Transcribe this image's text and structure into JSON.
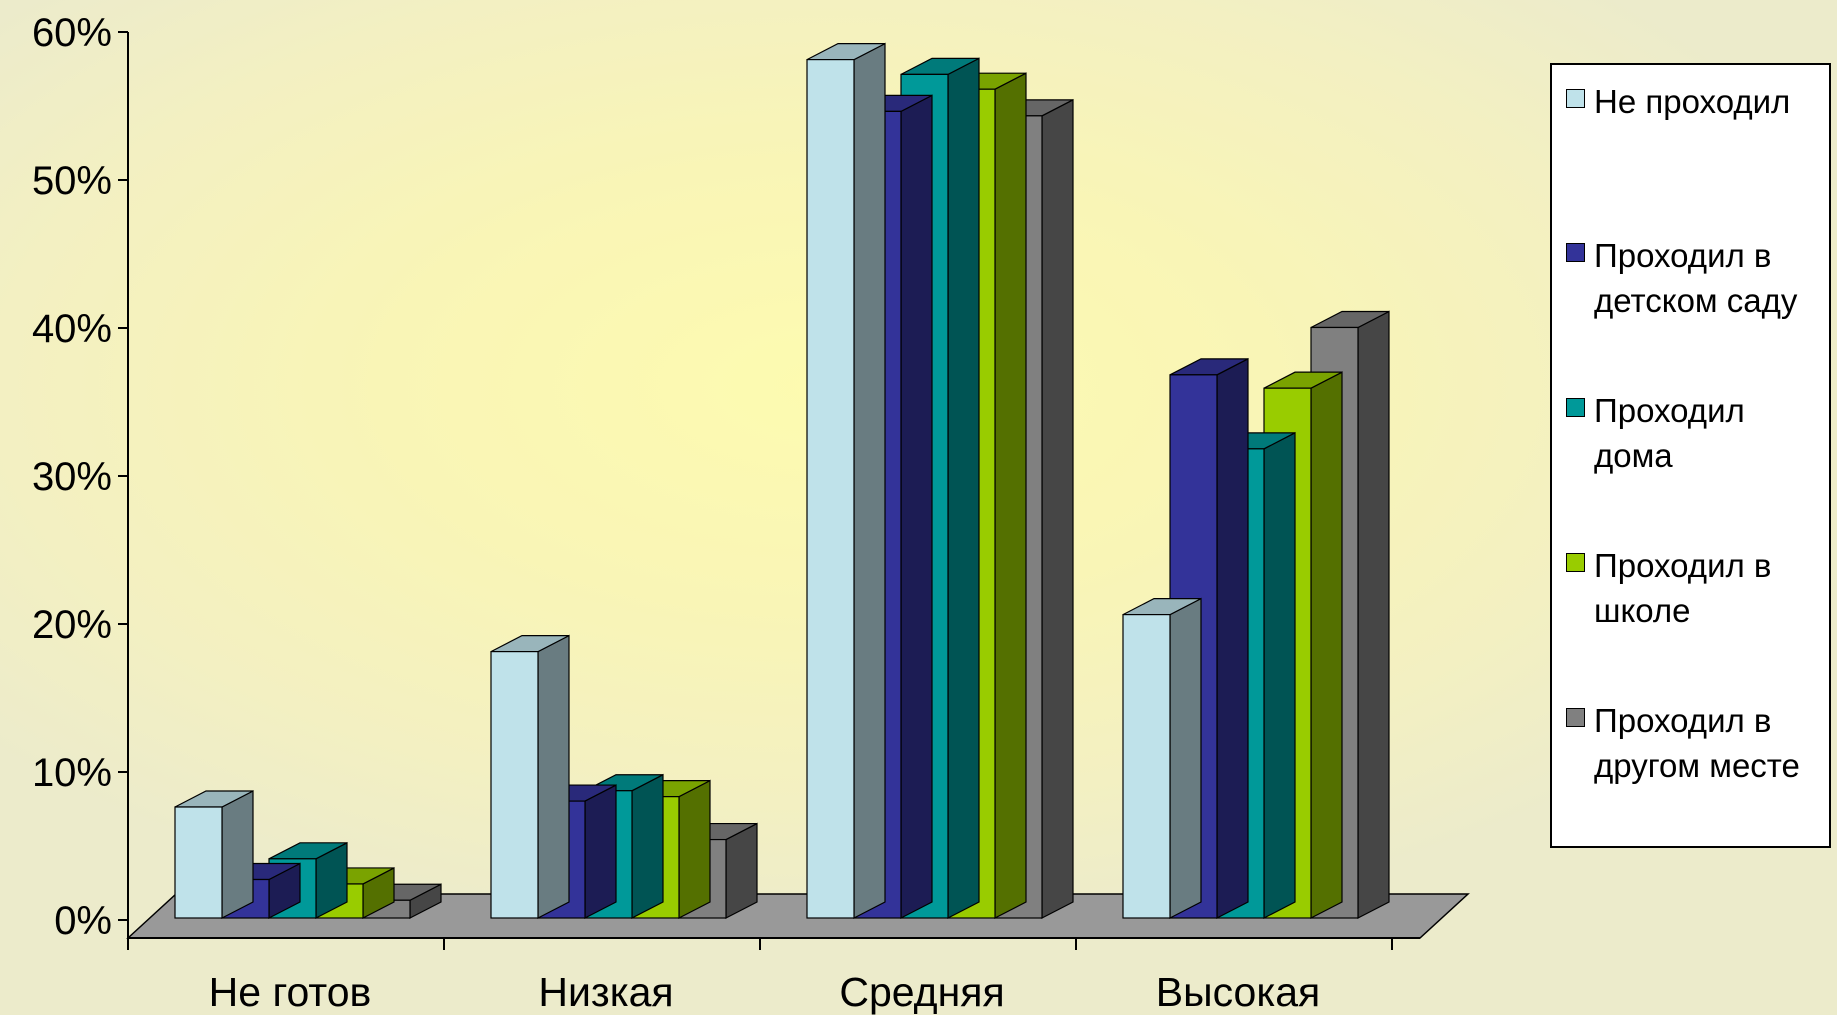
{
  "chart_data": {
    "type": "bar",
    "categories": [
      "Не готов",
      "Низкая",
      "Средняя",
      "Высокая"
    ],
    "y_ticks": [
      "0%",
      "10%",
      "20%",
      "30%",
      "40%",
      "50%",
      "60%"
    ],
    "ylim": [
      0,
      60
    ],
    "grid": false,
    "legend_position": "right",
    "series": [
      {
        "name": "Не проходил",
        "values": [
          7.5,
          18,
          58,
          20.5
        ],
        "color": "#bfe2ea"
      },
      {
        "name": "Проходил в детском саду",
        "values": [
          2.6,
          7.9,
          54.5,
          36.7
        ],
        "color": "#333399"
      },
      {
        "name": "Проходил дома",
        "values": [
          4,
          8.6,
          57,
          31.7
        ],
        "color": "#009999"
      },
      {
        "name": "Проходил в школе",
        "values": [
          2.3,
          8.2,
          56,
          35.8
        ],
        "color": "#99cc00"
      },
      {
        "name": "Проходил в другом месте",
        "values": [
          1.2,
          5.3,
          54.2,
          39.9
        ],
        "color": "#808080"
      }
    ]
  }
}
